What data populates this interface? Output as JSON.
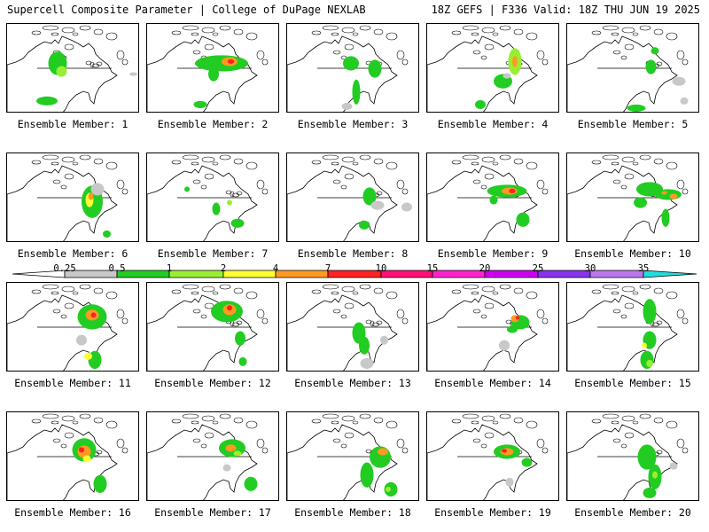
{
  "header": {
    "title": "Supercell Composite Parameter | College of DuPage NEXLAB",
    "valid": "18Z GEFS | F336 Valid: 18Z THU JUN 19 2025"
  },
  "colorbar": {
    "labels": [
      "0.25",
      "0.5",
      "1",
      "2",
      "4",
      "7",
      "10",
      "15",
      "20",
      "25",
      "30",
      "35"
    ],
    "colors": [
      "#ffffff",
      "#c8c8c8",
      "#22cc22",
      "#99ee33",
      "#ffff33",
      "#ff9922",
      "#ff2222",
      "#ff1077",
      "#ff22cc",
      "#cc00ee",
      "#8833ee",
      "#bb77ee",
      "#22dddd"
    ]
  },
  "panels": [
    {
      "label": "Ensemble Member: 1",
      "blobs": [
        [
          0.38,
          0.44,
          0.07,
          0.13,
          2
        ],
        [
          0.41,
          0.53,
          0.04,
          0.06,
          3
        ],
        [
          0.3,
          0.86,
          0.08,
          0.05,
          2
        ],
        [
          0.95,
          0.56,
          0.03,
          0.02,
          1
        ]
      ]
    },
    {
      "label": "Ensemble Member: 2",
      "blobs": [
        [
          0.56,
          0.44,
          0.2,
          0.09,
          2
        ],
        [
          0.62,
          0.42,
          0.06,
          0.05,
          5
        ],
        [
          0.63,
          0.42,
          0.025,
          0.025,
          6
        ],
        [
          0.5,
          0.56,
          0.04,
          0.08,
          2
        ],
        [
          0.4,
          0.9,
          0.05,
          0.04,
          2
        ]
      ]
    },
    {
      "label": "Ensemble Member: 3",
      "blobs": [
        [
          0.48,
          0.44,
          0.06,
          0.08,
          2
        ],
        [
          0.66,
          0.5,
          0.05,
          0.1,
          2
        ],
        [
          0.52,
          0.76,
          0.03,
          0.14,
          2
        ],
        [
          0.45,
          0.92,
          0.04,
          0.04,
          1
        ]
      ]
    },
    {
      "label": "Ensemble Member: 4",
      "blobs": [
        [
          0.66,
          0.42,
          0.05,
          0.15,
          3
        ],
        [
          0.66,
          0.42,
          0.02,
          0.06,
          5
        ],
        [
          0.57,
          0.64,
          0.07,
          0.08,
          2
        ],
        [
          0.4,
          0.9,
          0.04,
          0.05,
          2
        ],
        [
          0.6,
          0.58,
          0.03,
          0.03,
          1
        ]
      ]
    },
    {
      "label": "Ensemble Member: 5",
      "blobs": [
        [
          0.63,
          0.48,
          0.04,
          0.08,
          2
        ],
        [
          0.84,
          0.64,
          0.05,
          0.05,
          1
        ],
        [
          0.52,
          0.94,
          0.07,
          0.04,
          2
        ],
        [
          0.66,
          0.3,
          0.03,
          0.04,
          2
        ],
        [
          0.88,
          0.86,
          0.03,
          0.04,
          1
        ]
      ]
    },
    {
      "label": "Ensemble Member: 6",
      "blobs": [
        [
          0.64,
          0.54,
          0.08,
          0.18,
          2
        ],
        [
          0.62,
          0.52,
          0.03,
          0.08,
          4
        ],
        [
          0.63,
          0.48,
          0.02,
          0.04,
          5
        ],
        [
          0.68,
          0.4,
          0.05,
          0.07,
          1
        ],
        [
          0.75,
          0.9,
          0.03,
          0.04,
          2
        ]
      ]
    },
    {
      "label": "Ensemble Member: 7",
      "blobs": [
        [
          0.52,
          0.62,
          0.03,
          0.07,
          2
        ],
        [
          0.68,
          0.78,
          0.05,
          0.05,
          2
        ],
        [
          0.3,
          0.4,
          0.02,
          0.03,
          2
        ],
        [
          0.62,
          0.55,
          0.02,
          0.03,
          3
        ]
      ]
    },
    {
      "label": "Ensemble Member: 8",
      "blobs": [
        [
          0.62,
          0.48,
          0.05,
          0.1,
          2
        ],
        [
          0.68,
          0.58,
          0.05,
          0.05,
          1
        ],
        [
          0.58,
          0.8,
          0.04,
          0.05,
          2
        ],
        [
          0.9,
          0.6,
          0.04,
          0.05,
          1
        ]
      ]
    },
    {
      "label": "Ensemble Member: 9",
      "blobs": [
        [
          0.6,
          0.42,
          0.15,
          0.07,
          2
        ],
        [
          0.62,
          0.42,
          0.06,
          0.04,
          5
        ],
        [
          0.64,
          0.42,
          0.025,
          0.025,
          6
        ],
        [
          0.72,
          0.74,
          0.05,
          0.08,
          2
        ],
        [
          0.5,
          0.52,
          0.03,
          0.05,
          2
        ]
      ]
    },
    {
      "label": "Ensemble Member: 10",
      "blobs": [
        [
          0.62,
          0.4,
          0.1,
          0.08,
          2
        ],
        [
          0.76,
          0.46,
          0.1,
          0.06,
          2
        ],
        [
          0.8,
          0.48,
          0.03,
          0.03,
          5
        ],
        [
          0.73,
          0.44,
          0.02,
          0.02,
          5
        ],
        [
          0.55,
          0.55,
          0.05,
          0.06,
          2
        ],
        [
          0.74,
          0.72,
          0.03,
          0.1,
          2
        ]
      ]
    },
    {
      "label": "Ensemble Member: 11",
      "blobs": [
        [
          0.64,
          0.38,
          0.11,
          0.14,
          2
        ],
        [
          0.64,
          0.36,
          0.05,
          0.06,
          5
        ],
        [
          0.65,
          0.36,
          0.02,
          0.03,
          6
        ],
        [
          0.66,
          0.86,
          0.05,
          0.1,
          2
        ],
        [
          0.61,
          0.82,
          0.03,
          0.04,
          4
        ],
        [
          0.56,
          0.64,
          0.04,
          0.06,
          1
        ]
      ]
    },
    {
      "label": "Ensemble Member: 12",
      "blobs": [
        [
          0.6,
          0.32,
          0.12,
          0.12,
          2
        ],
        [
          0.62,
          0.3,
          0.05,
          0.06,
          5
        ],
        [
          0.62,
          0.28,
          0.02,
          0.03,
          6
        ],
        [
          0.7,
          0.62,
          0.04,
          0.08,
          2
        ],
        [
          0.72,
          0.88,
          0.03,
          0.05,
          2
        ]
      ]
    },
    {
      "label": "Ensemble Member: 13",
      "blobs": [
        [
          0.54,
          0.56,
          0.05,
          0.12,
          2
        ],
        [
          0.58,
          0.7,
          0.04,
          0.1,
          2
        ],
        [
          0.73,
          0.64,
          0.03,
          0.05,
          1
        ],
        [
          0.6,
          0.9,
          0.05,
          0.06,
          1
        ]
      ]
    },
    {
      "label": "Ensemble Member: 14",
      "blobs": [
        [
          0.7,
          0.44,
          0.07,
          0.08,
          2
        ],
        [
          0.66,
          0.4,
          0.03,
          0.04,
          5
        ],
        [
          0.68,
          0.39,
          0.015,
          0.02,
          6
        ],
        [
          0.64,
          0.52,
          0.04,
          0.04,
          2
        ],
        [
          0.58,
          0.7,
          0.04,
          0.06,
          1
        ]
      ]
    },
    {
      "label": "Ensemble Member: 15",
      "blobs": [
        [
          0.62,
          0.32,
          0.05,
          0.14,
          2
        ],
        [
          0.62,
          0.64,
          0.05,
          0.1,
          2
        ],
        [
          0.6,
          0.86,
          0.05,
          0.1,
          2
        ],
        [
          0.62,
          0.9,
          0.025,
          0.04,
          3
        ],
        [
          0.58,
          0.7,
          0.02,
          0.03,
          4
        ]
      ]
    },
    {
      "label": "Ensemble Member: 16",
      "blobs": [
        [
          0.58,
          0.42,
          0.09,
          0.13,
          2
        ],
        [
          0.58,
          0.44,
          0.05,
          0.07,
          5
        ],
        [
          0.56,
          0.42,
          0.02,
          0.03,
          6
        ],
        [
          0.7,
          0.8,
          0.05,
          0.1,
          2
        ],
        [
          0.6,
          0.52,
          0.03,
          0.04,
          4
        ]
      ]
    },
    {
      "label": "Ensemble Member: 17",
      "blobs": [
        [
          0.64,
          0.4,
          0.1,
          0.1,
          2
        ],
        [
          0.63,
          0.4,
          0.04,
          0.04,
          5
        ],
        [
          0.68,
          0.46,
          0.03,
          0.03,
          3
        ],
        [
          0.78,
          0.8,
          0.05,
          0.08,
          2
        ],
        [
          0.6,
          0.62,
          0.03,
          0.04,
          1
        ]
      ]
    },
    {
      "label": "Ensemble Member: 18",
      "blobs": [
        [
          0.7,
          0.5,
          0.08,
          0.12,
          2
        ],
        [
          0.72,
          0.44,
          0.04,
          0.04,
          5
        ],
        [
          0.6,
          0.7,
          0.05,
          0.14,
          2
        ],
        [
          0.78,
          0.86,
          0.05,
          0.08,
          2
        ],
        [
          0.76,
          0.86,
          0.02,
          0.03,
          3
        ]
      ]
    },
    {
      "label": "Ensemble Member: 19",
      "blobs": [
        [
          0.6,
          0.44,
          0.1,
          0.08,
          2
        ],
        [
          0.6,
          0.44,
          0.05,
          0.04,
          5
        ],
        [
          0.58,
          0.43,
          0.02,
          0.02,
          6
        ],
        [
          0.75,
          0.56,
          0.04,
          0.05,
          2
        ],
        [
          0.62,
          0.78,
          0.03,
          0.05,
          1
        ]
      ]
    },
    {
      "label": "Ensemble Member: 20",
      "blobs": [
        [
          0.6,
          0.5,
          0.07,
          0.14,
          2
        ],
        [
          0.66,
          0.72,
          0.05,
          0.14,
          2
        ],
        [
          0.66,
          0.7,
          0.02,
          0.04,
          3
        ],
        [
          0.62,
          0.9,
          0.05,
          0.06,
          2
        ],
        [
          0.8,
          0.6,
          0.03,
          0.04,
          1
        ]
      ]
    }
  ]
}
